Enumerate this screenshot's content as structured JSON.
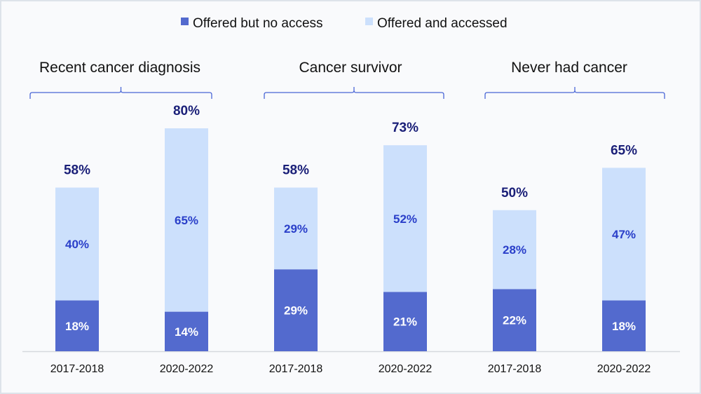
{
  "chart_data": {
    "type": "bar",
    "stacked": true,
    "legend_position": "top",
    "grid": false,
    "ylim": [
      0,
      100
    ],
    "groups": [
      {
        "label": "Recent cancer diagnosis",
        "categories": [
          "2017-2018",
          "2020-2022"
        ]
      },
      {
        "label": "Cancer survivor",
        "categories": [
          "2017-2018",
          "2020-2022"
        ]
      },
      {
        "label": "Never had cancer",
        "categories": [
          "2017-2018",
          "2020-2022"
        ]
      }
    ],
    "categories": [
      "2017-2018",
      "2020-2022",
      "2017-2018",
      "2020-2022",
      "2017-2018",
      "2020-2022"
    ],
    "series": [
      {
        "name": "Offered but no access",
        "color": "#536ace",
        "values": [
          18,
          14,
          29,
          21,
          22,
          18
        ],
        "labels": [
          "18%",
          "14%",
          "29%",
          "21%",
          "22%",
          "18%"
        ]
      },
      {
        "name": "Offered and accessed",
        "color": "#cce0fc",
        "values": [
          40,
          65,
          29,
          52,
          28,
          47
        ],
        "labels": [
          "40%",
          "65%",
          "29%",
          "52%",
          "28%",
          "47%"
        ]
      }
    ],
    "totals": [
      58,
      80,
      58,
      73,
      50,
      65
    ],
    "total_labels": [
      "58%",
      "80%",
      "58%",
      "73%",
      "50%",
      "65%"
    ],
    "colors": {
      "total_label": "#1a1f78",
      "inner_label_light": "#2a3fc9",
      "inner_label_dark": "#ffffff",
      "brace": "#4a66d6"
    }
  }
}
